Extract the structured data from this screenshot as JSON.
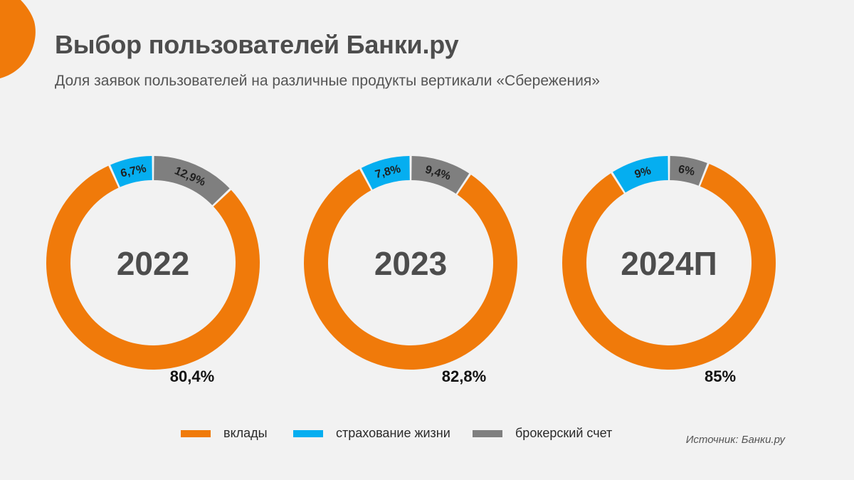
{
  "header": {
    "title": "Выбор пользователей Банки.ру",
    "subtitle": "Доля заявок пользователей на различные продукты вертикали «Сбережения»"
  },
  "colors": {
    "deposits": "#f07a0a",
    "life_insurance": "#05aef0",
    "brokerage": "#7f7f7f",
    "background": "#f2f2f2",
    "accent_blob": "#f07a0a"
  },
  "chart_data": [
    {
      "type": "pie",
      "variant": "donut",
      "center_label": "2022",
      "categories": [
        "вклады",
        "страхование жизни",
        "брокерский счет"
      ],
      "values": [
        80.4,
        6.7,
        12.9
      ],
      "labels": [
        "80,4%",
        "6,7%",
        "12,9%"
      ]
    },
    {
      "type": "pie",
      "variant": "donut",
      "center_label": "2023",
      "categories": [
        "вклады",
        "страхование жизни",
        "брокерский счет"
      ],
      "values": [
        82.8,
        7.8,
        9.4
      ],
      "labels": [
        "82,8%",
        "7,8%",
        "9,4%"
      ]
    },
    {
      "type": "pie",
      "variant": "donut",
      "center_label": "2024П",
      "categories": [
        "вклады",
        "страхование жизни",
        "брокерский счет"
      ],
      "values": [
        85,
        9,
        6
      ],
      "labels": [
        "85%",
        "9%",
        "6%"
      ]
    }
  ],
  "legend": {
    "items": [
      {
        "label": "вклады",
        "key": "deposits"
      },
      {
        "label": "страхование жизни",
        "key": "life_insurance"
      },
      {
        "label": "брокерский счет",
        "key": "brokerage"
      }
    ],
    "placement": "bottom"
  },
  "source": "Источник: Банки.ру"
}
